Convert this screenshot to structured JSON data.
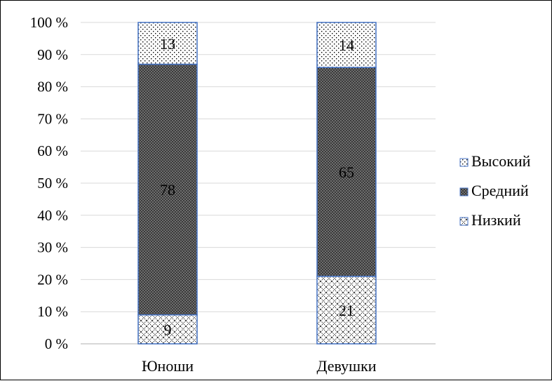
{
  "chart_data": {
    "type": "bar",
    "stacked": true,
    "percent": true,
    "categories": [
      "Юноши",
      "Девушки"
    ],
    "series": [
      {
        "name": "Низкий",
        "values": [
          9,
          21
        ],
        "pattern": "cross-hatch"
      },
      {
        "name": "Средний",
        "values": [
          78,
          65
        ],
        "pattern": "dense-checker"
      },
      {
        "name": "Высокий",
        "values": [
          13,
          14
        ],
        "pattern": "dots"
      }
    ],
    "yticks": [
      "0 %",
      "10 %",
      "20 %",
      "30 %",
      "40 %",
      "50 %",
      "60 %",
      "70 %",
      "80 %",
      "90 %",
      "100 %"
    ],
    "ylim": [
      0,
      100
    ],
    "title": "",
    "xlabel": "",
    "ylabel": "",
    "grid": true,
    "legend": "right",
    "colors": {
      "bar_border": "#4472C4",
      "grid": "#d9d9d9",
      "axis": "#bfbfbf"
    }
  }
}
